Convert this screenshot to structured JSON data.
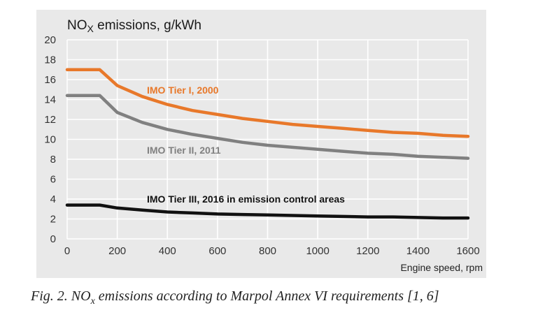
{
  "chart_data": {
    "type": "line",
    "title": "NOX emissions, g/kWh",
    "title_main": "NO",
    "title_sub": "X",
    "title_rest": " emissions, g/kWh",
    "xlabel": "Engine speed, rpm",
    "ylabel": "",
    "xlim": [
      0,
      1600
    ],
    "ylim": [
      0,
      20
    ],
    "x_ticks": [
      "0",
      "200",
      "400",
      "600",
      "800",
      "1000",
      "1200",
      "1400",
      "1600"
    ],
    "y_ticks": [
      "0",
      "2",
      "4",
      "6",
      "8",
      "10",
      "12",
      "14",
      "16",
      "18",
      "20"
    ],
    "grid": true,
    "series": [
      {
        "name": "IMO Tier I, 2000",
        "color": "#e8782a",
        "x": [
          0,
          130,
          200,
          300,
          400,
          500,
          600,
          700,
          800,
          900,
          1000,
          1100,
          1200,
          1300,
          1400,
          1500,
          1600
        ],
        "values": [
          17.0,
          17.0,
          15.4,
          14.3,
          13.5,
          12.9,
          12.5,
          12.1,
          11.8,
          11.5,
          11.3,
          11.1,
          10.9,
          10.7,
          10.6,
          10.4,
          10.3
        ]
      },
      {
        "name": "IMO Tier II, 2011",
        "color": "#808080",
        "x": [
          0,
          130,
          200,
          300,
          400,
          500,
          600,
          700,
          800,
          900,
          1000,
          1100,
          1200,
          1300,
          1400,
          1500,
          1600
        ],
        "values": [
          14.4,
          14.4,
          12.7,
          11.7,
          11.0,
          10.5,
          10.1,
          9.7,
          9.4,
          9.2,
          9.0,
          8.8,
          8.6,
          8.5,
          8.3,
          8.2,
          8.1
        ]
      },
      {
        "name": "IMO Tier III, 2016 in emission control areas",
        "color": "#111111",
        "x": [
          0,
          130,
          200,
          300,
          400,
          500,
          600,
          700,
          800,
          900,
          1000,
          1100,
          1200,
          1300,
          1400,
          1500,
          1600
        ],
        "values": [
          3.4,
          3.4,
          3.1,
          2.9,
          2.7,
          2.6,
          2.5,
          2.45,
          2.4,
          2.35,
          2.3,
          2.25,
          2.2,
          2.2,
          2.15,
          2.1,
          2.1
        ]
      }
    ]
  },
  "caption": {
    "main": "Fig. 2. NO",
    "sub": "x",
    "rest": " emissions according to Marpol Annex VI requirements [1, 6]"
  }
}
